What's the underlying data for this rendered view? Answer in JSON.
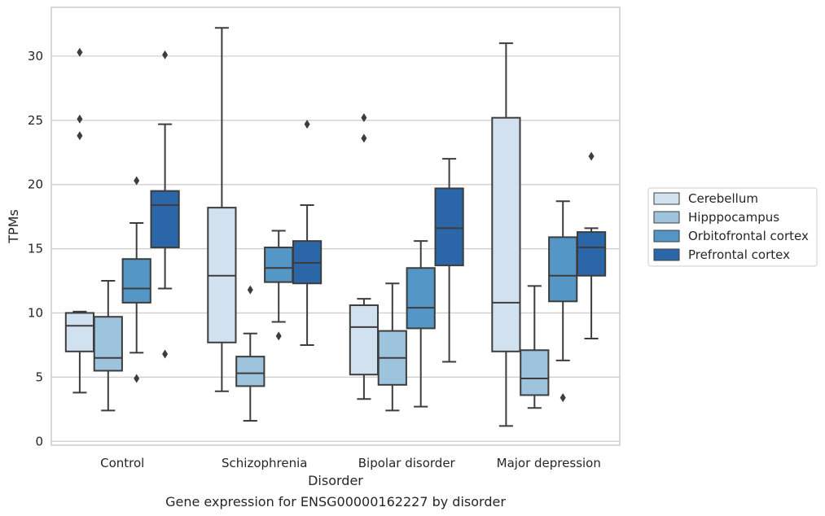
{
  "chart_data": {
    "type": "box",
    "caption": "Gene expression for ENSG00000162227 by disorder",
    "xlabel": "Disorder",
    "ylabel": "TPMs",
    "ylim": [
      -0.3,
      33.8
    ],
    "yticks": [
      "0",
      "5",
      "10",
      "15",
      "20",
      "25",
      "30"
    ],
    "ytick_values": [
      0,
      5,
      10,
      15,
      20,
      25,
      30
    ],
    "grid": true,
    "legend_position": "right",
    "categories": [
      "Control",
      "Schizophrenia",
      "Bipolar disorder",
      "Major depression"
    ],
    "series": [
      {
        "name": "Cerebellum",
        "color": "#d1e1f0",
        "boxes": [
          {
            "whislo": 3.8,
            "q1": 7.0,
            "med": 9.0,
            "q3": 10.0,
            "whishi": 10.1,
            "fliers": [
              30.3,
              25.1,
              23.8
            ]
          },
          {
            "whislo": 3.9,
            "q1": 7.7,
            "med": 12.9,
            "q3": 18.2,
            "whishi": 32.2,
            "fliers": []
          },
          {
            "whislo": 3.3,
            "q1": 5.2,
            "med": 8.9,
            "q3": 10.6,
            "whishi": 11.1,
            "fliers": [
              25.2,
              23.6
            ]
          },
          {
            "whislo": 1.2,
            "q1": 7.0,
            "med": 10.8,
            "q3": 25.2,
            "whishi": 31.0,
            "fliers": []
          }
        ]
      },
      {
        "name": "Hipppocampus",
        "color": "#9dc3dd",
        "boxes": [
          {
            "whislo": 2.4,
            "q1": 5.5,
            "med": 6.5,
            "q3": 9.7,
            "whishi": 12.5,
            "fliers": []
          },
          {
            "whislo": 1.6,
            "q1": 4.3,
            "med": 5.3,
            "q3": 6.6,
            "whishi": 8.4,
            "fliers": [
              11.8
            ]
          },
          {
            "whislo": 2.4,
            "q1": 4.4,
            "med": 6.5,
            "q3": 8.6,
            "whishi": 12.3,
            "fliers": []
          },
          {
            "whislo": 2.6,
            "q1": 3.6,
            "med": 4.9,
            "q3": 7.1,
            "whishi": 12.1,
            "fliers": []
          }
        ]
      },
      {
        "name": "Orbitofrontal cortex",
        "color": "#5496c5",
        "boxes": [
          {
            "whislo": 6.9,
            "q1": 10.8,
            "med": 11.9,
            "q3": 14.2,
            "whishi": 17.0,
            "fliers": [
              20.3,
              4.9
            ]
          },
          {
            "whislo": 9.3,
            "q1": 12.4,
            "med": 13.5,
            "q3": 15.1,
            "whishi": 16.4,
            "fliers": [
              8.2
            ]
          },
          {
            "whislo": 2.7,
            "q1": 8.8,
            "med": 10.4,
            "q3": 13.5,
            "whishi": 15.6,
            "fliers": []
          },
          {
            "whislo": 6.3,
            "q1": 10.9,
            "med": 12.9,
            "q3": 15.9,
            "whishi": 18.7,
            "fliers": [
              3.4
            ]
          }
        ]
      },
      {
        "name": "Prefrontal cortex",
        "color": "#2a66a8",
        "boxes": [
          {
            "whislo": 11.9,
            "q1": 15.1,
            "med": 18.4,
            "q3": 19.5,
            "whishi": 24.7,
            "fliers": [
              30.1,
              6.8
            ]
          },
          {
            "whislo": 7.5,
            "q1": 12.3,
            "med": 13.9,
            "q3": 15.6,
            "whishi": 18.4,
            "fliers": [
              24.7
            ]
          },
          {
            "whislo": 6.2,
            "q1": 13.7,
            "med": 16.6,
            "q3": 19.7,
            "whishi": 22.0,
            "fliers": []
          },
          {
            "whislo": 8.0,
            "q1": 12.9,
            "med": 15.1,
            "q3": 16.3,
            "whishi": 16.6,
            "fliers": [
              22.2
            ]
          }
        ]
      }
    ]
  }
}
